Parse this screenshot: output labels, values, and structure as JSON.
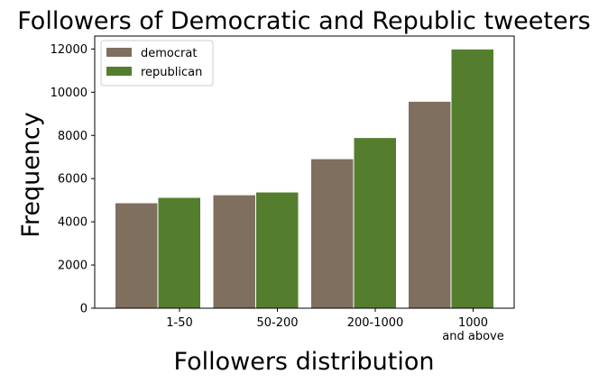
{
  "chart_data": {
    "type": "bar",
    "title": "Followers of Democratic and Republic tweeters",
    "xlabel": "Followers distribution",
    "ylabel": "Frequency",
    "categories": [
      "1-50",
      "50-200",
      "200-1000",
      "1000\nand above"
    ],
    "ylim": [
      0,
      12600
    ],
    "yticks": [
      0,
      2000,
      4000,
      6000,
      8000,
      10000,
      12000
    ],
    "grid": false,
    "legend_position": "upper-left",
    "series": [
      {
        "name": "democrat",
        "color": "#7f6f5f",
        "values": [
          4880,
          5250,
          6920,
          9580
        ]
      },
      {
        "name": "republican",
        "color": "#547e2e",
        "values": [
          5130,
          5380,
          7900,
          12000
        ]
      }
    ]
  }
}
